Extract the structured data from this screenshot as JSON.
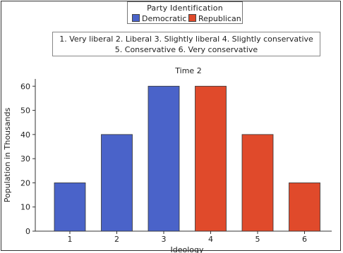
{
  "legend": {
    "title": "Party Identification",
    "items": [
      {
        "label": "Democratic",
        "color": "#4a63c9"
      },
      {
        "label": "Republican",
        "color": "#e04a2b"
      }
    ]
  },
  "key": {
    "line1": "1. Very liberal  2. Liberal  3. Slightly liberal  4. Slightly conservative",
    "line2": "5. Conservative  6. Very conservative"
  },
  "chart_data": {
    "type": "bar",
    "title": "Time 2",
    "xlabel": "Ideology",
    "ylabel": "Population in Thousands",
    "categories": [
      "1",
      "2",
      "3",
      "4",
      "5",
      "6"
    ],
    "values": [
      20,
      40,
      60,
      60,
      40,
      20
    ],
    "party": [
      "Democratic",
      "Democratic",
      "Democratic",
      "Republican",
      "Republican",
      "Republican"
    ],
    "yticks": [
      0,
      10,
      20,
      30,
      40,
      50,
      60
    ],
    "ylim": [
      0,
      63
    ],
    "grid": false
  }
}
